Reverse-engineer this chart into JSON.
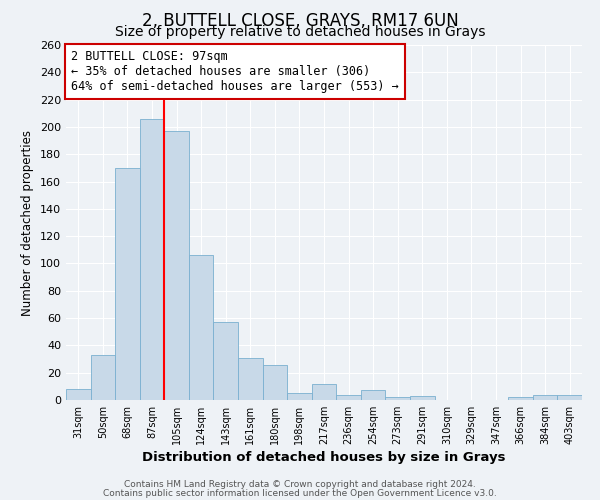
{
  "title": "2, BUTTELL CLOSE, GRAYS, RM17 6UN",
  "subtitle": "Size of property relative to detached houses in Grays",
  "xlabel": "Distribution of detached houses by size in Grays",
  "ylabel": "Number of detached properties",
  "categories": [
    "31sqm",
    "50sqm",
    "68sqm",
    "87sqm",
    "105sqm",
    "124sqm",
    "143sqm",
    "161sqm",
    "180sqm",
    "198sqm",
    "217sqm",
    "236sqm",
    "254sqm",
    "273sqm",
    "291sqm",
    "310sqm",
    "329sqm",
    "347sqm",
    "366sqm",
    "384sqm",
    "403sqm"
  ],
  "values": [
    8,
    33,
    170,
    206,
    197,
    106,
    57,
    31,
    26,
    5,
    12,
    4,
    7,
    2,
    3,
    0,
    0,
    0,
    2,
    4,
    4
  ],
  "bar_color": "#c8d9e8",
  "bar_edge_color": "#7ab0d0",
  "bar_width": 1.0,
  "ylim": [
    0,
    260
  ],
  "yticks": [
    0,
    20,
    40,
    60,
    80,
    100,
    120,
    140,
    160,
    180,
    200,
    220,
    240,
    260
  ],
  "red_line_x": 3.5,
  "annotation_title": "2 BUTTELL CLOSE: 97sqm",
  "annotation_line1": "← 35% of detached houses are smaller (306)",
  "annotation_line2": "64% of semi-detached houses are larger (553) →",
  "annotation_box_facecolor": "#ffffff",
  "annotation_box_edgecolor": "#cc0000",
  "footer1": "Contains HM Land Registry data © Crown copyright and database right 2024.",
  "footer2": "Contains public sector information licensed under the Open Government Licence v3.0.",
  "bg_color": "#eef2f6",
  "grid_color": "#ffffff",
  "title_fontsize": 12,
  "subtitle_fontsize": 10,
  "annot_fontsize": 8.5,
  "xlabel_fontsize": 9.5,
  "ylabel_fontsize": 8.5
}
